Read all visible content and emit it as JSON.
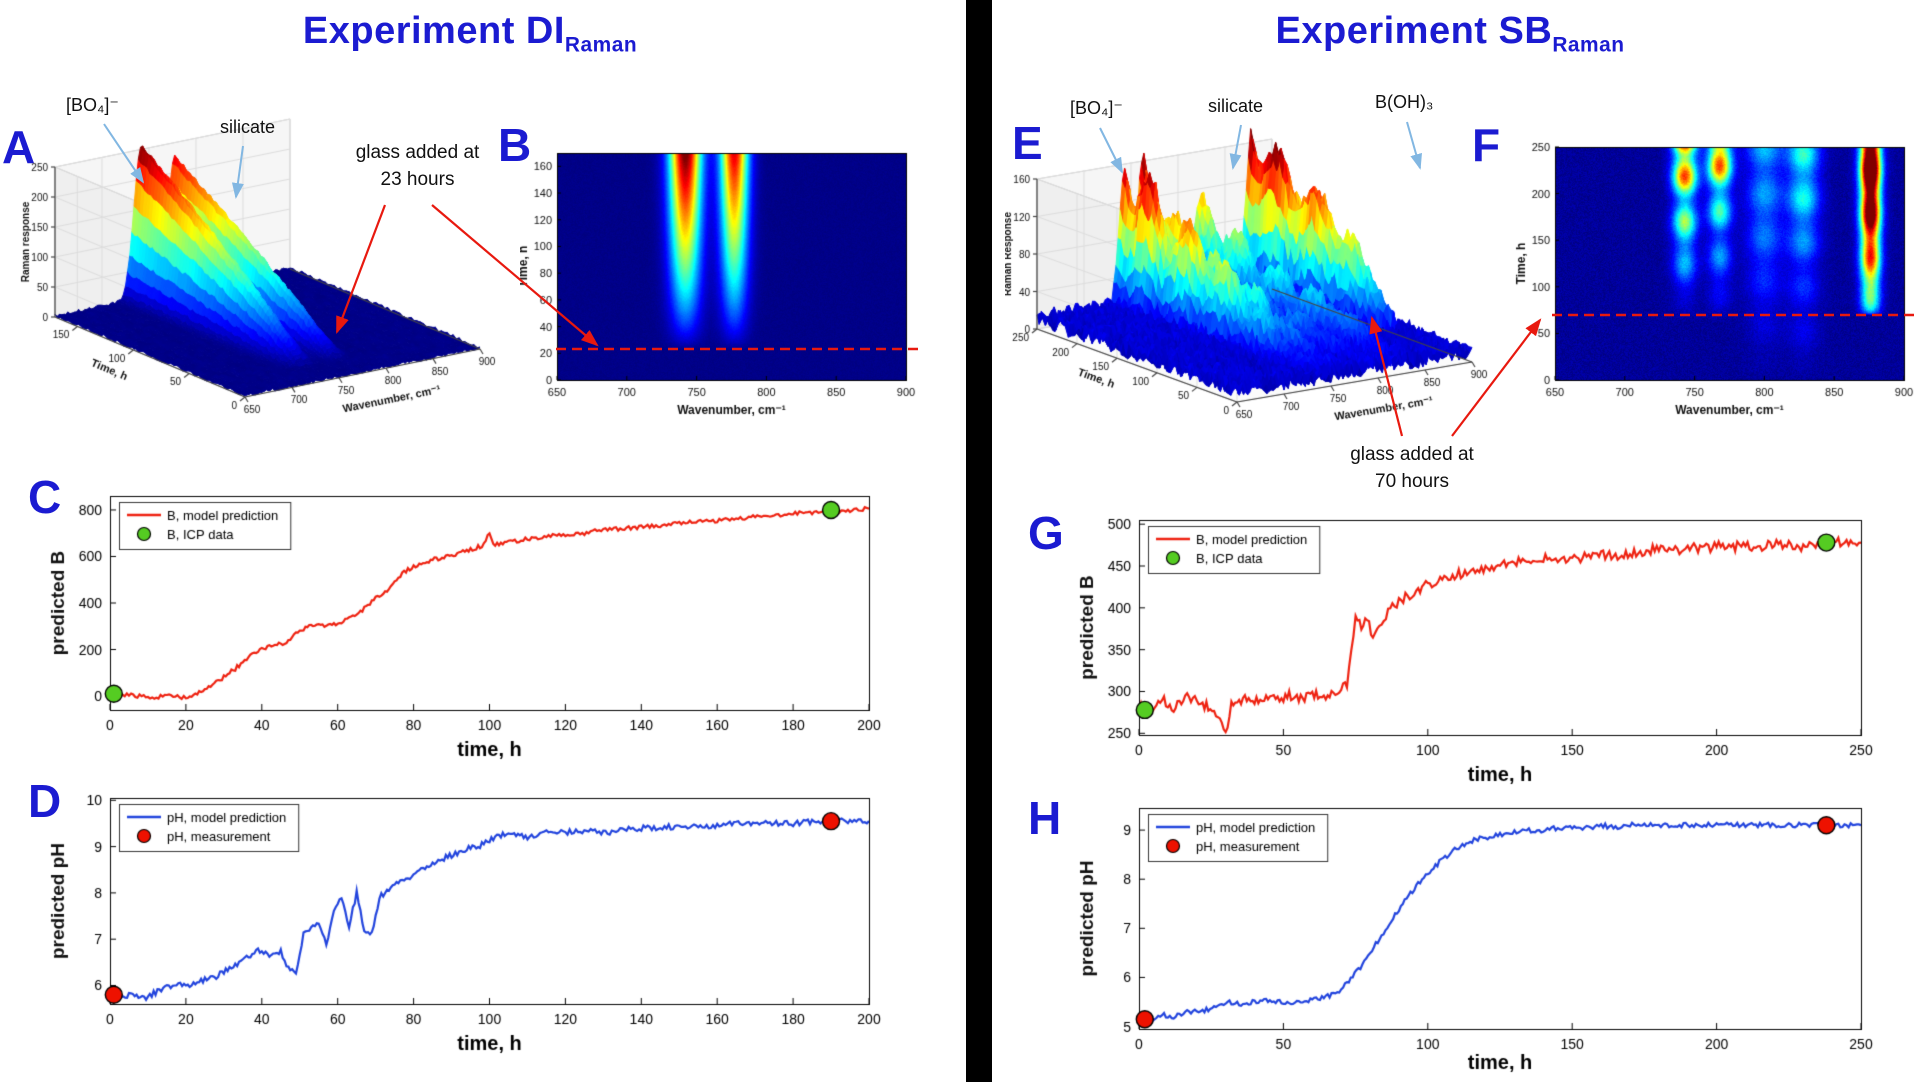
{
  "page": {
    "background": "#ffffff",
    "divider_color": "#000000"
  },
  "colors": {
    "title_blue": "#1b1bd1",
    "model_red": "#ee2211",
    "model_blue": "#2244dd",
    "icp_green": "#55cc22",
    "measurement_red": "#ee1100",
    "arrow_red": "#e8190f",
    "arrow_blue": "#82b7e2"
  },
  "left": {
    "title": {
      "main": "Experiment DI",
      "sub": "Raman"
    },
    "panel_labels": {
      "a": "A",
      "b": "B",
      "c": "C",
      "d": "D"
    },
    "annotations": {
      "bo4": "[BO₄]⁻",
      "silicate": "silicate",
      "glass": {
        "line1": "glass added at",
        "line2": "23 hours"
      }
    }
  },
  "right": {
    "title": {
      "main": "Experiment SB",
      "sub": "Raman"
    },
    "panel_labels": {
      "e": "E",
      "f": "F",
      "g": "G",
      "h": "H"
    },
    "annotations": {
      "bo4": "[BO₄]⁻",
      "silicate": "silicate",
      "boh3": "B(OH)₃",
      "glass": {
        "line1": "glass added at",
        "line2": "70 hours"
      }
    }
  },
  "chart_data": [
    {
      "id": "A",
      "type": "surface3d",
      "xlabel": "Wavenumber, cm⁻¹",
      "x_range": [
        650,
        900
      ],
      "x_ticks": [
        650,
        700,
        750,
        800,
        850,
        900
      ],
      "ylabel": "Time, h",
      "y_range": [
        0,
        170
      ],
      "y_ticks": [
        0,
        50,
        100,
        150
      ],
      "zlabel": "Raman response",
      "z_range": [
        0,
        250
      ],
      "z_ticks": [
        0,
        50,
        100,
        150,
        200,
        250
      ],
      "colormap": "jet",
      "baseline": 2,
      "roughness": 3,
      "peaks": [
        {
          "name": "[BO₄]⁻",
          "center": 742,
          "sigma": 8,
          "max": 255,
          "onset": 23,
          "pow": 0.85
        },
        {
          "name": "silicate",
          "center": 777,
          "sigma": 7,
          "max": 225,
          "onset": 23,
          "pow": 0.85
        }
      ]
    },
    {
      "id": "B",
      "type": "heatmap",
      "xlabel": "Wavenumber, cm⁻¹",
      "x_range": [
        650,
        900
      ],
      "x_ticks": [
        650,
        700,
        750,
        800,
        850,
        900
      ],
      "ylabel": "Time, h",
      "y_range": [
        0,
        170
      ],
      "y_ticks": [
        0,
        20,
        40,
        60,
        80,
        100,
        120,
        140,
        160
      ],
      "z_range": [
        0,
        250
      ],
      "colormap": "jet",
      "glass_added_h": 23,
      "baseline": 2,
      "roughness": 2,
      "peaks": [
        {
          "name": "[BO₄]⁻",
          "center": 742,
          "sigma": 8,
          "max": 255,
          "onset": 23,
          "pow": 0.85
        },
        {
          "name": "silicate",
          "center": 777,
          "sigma": 7,
          "max": 225,
          "onset": 23,
          "pow": 0.85
        }
      ]
    },
    {
      "id": "C",
      "type": "line",
      "xlabel": "time, h",
      "x_range": [
        0,
        200
      ],
      "x_ticks": [
        0,
        20,
        40,
        60,
        80,
        100,
        120,
        140,
        160,
        180,
        200
      ],
      "ylabel": "predicted B",
      "y_range": [
        -60,
        860
      ],
      "y_ticks": [
        0,
        200,
        400,
        600,
        800
      ],
      "legend_position": "top-left",
      "series": [
        {
          "name": "B, model prediction",
          "kind": "line",
          "color": "#ee2211",
          "noise": 9,
          "x": [
            0,
            5,
            10,
            15,
            20,
            23,
            26,
            30,
            34,
            38,
            42,
            46,
            50,
            54,
            57,
            60,
            63,
            66,
            70,
            74,
            78,
            82,
            86,
            90,
            94,
            98,
            100,
            101,
            105,
            110,
            115,
            120,
            125,
            130,
            135,
            140,
            145,
            150,
            155,
            160,
            165,
            170,
            175,
            180,
            185,
            190,
            195,
            200
          ],
          "y": [
            10,
            5,
            -5,
            0,
            -5,
            10,
            40,
            80,
            130,
            185,
            215,
            225,
            285,
            305,
            300,
            310,
            330,
            360,
            420,
            470,
            540,
            570,
            590,
            605,
            625,
            645,
            700,
            650,
            660,
            675,
            685,
            695,
            700,
            715,
            720,
            725,
            735,
            745,
            750,
            755,
            765,
            770,
            775,
            785,
            790,
            795,
            800,
            805
          ]
        },
        {
          "name": "B, ICP data",
          "kind": "scatter",
          "color": "#55cc22",
          "x": [
            1,
            190
          ],
          "y": [
            10,
            800
          ]
        }
      ]
    },
    {
      "id": "D",
      "type": "line",
      "xlabel": "time, h",
      "x_range": [
        0,
        200
      ],
      "x_ticks": [
        0,
        20,
        40,
        60,
        80,
        100,
        120,
        140,
        160,
        180,
        200
      ],
      "ylabel": "predicted pH",
      "y_range": [
        5.6,
        10.05
      ],
      "y_ticks": [
        6,
        7,
        8,
        9,
        10
      ],
      "legend_position": "top-left",
      "series": [
        {
          "name": "pH, model prediction",
          "kind": "line",
          "color": "#2244dd",
          "noise": 0.06,
          "x": [
            0,
            3,
            6,
            9,
            12,
            15,
            18,
            21,
            24,
            27,
            30,
            33,
            36,
            39,
            42,
            45,
            47,
            49,
            51,
            53,
            55,
            57,
            59,
            61,
            63,
            65,
            67,
            69,
            71,
            73,
            76,
            79,
            82,
            85,
            88,
            91,
            94,
            97,
            100,
            103,
            106,
            110,
            115,
            120,
            125,
            130,
            135,
            140,
            145,
            150,
            155,
            160,
            165,
            170,
            175,
            180,
            185,
            190,
            195,
            200
          ],
          "y": [
            5.8,
            5.75,
            5.8,
            5.7,
            5.85,
            5.95,
            6.05,
            6.0,
            6.1,
            6.15,
            6.3,
            6.45,
            6.6,
            6.75,
            6.65,
            6.75,
            6.35,
            6.3,
            7.1,
            7.25,
            7.3,
            6.9,
            7.6,
            7.9,
            7.3,
            8.0,
            7.2,
            7.15,
            7.9,
            8.05,
            8.2,
            8.35,
            8.5,
            8.6,
            8.75,
            8.85,
            8.95,
            9.0,
            9.15,
            9.25,
            9.3,
            9.2,
            9.3,
            9.3,
            9.35,
            9.3,
            9.35,
            9.4,
            9.4,
            9.45,
            9.45,
            9.45,
            9.5,
            9.5,
            9.5,
            9.5,
            9.55,
            9.55,
            9.55,
            9.55
          ]
        },
        {
          "name": "pH, measurement",
          "kind": "scatter",
          "color": "#ee1100",
          "x": [
            1,
            190
          ],
          "y": [
            5.8,
            9.55
          ]
        }
      ]
    },
    {
      "id": "E",
      "type": "surface3d",
      "xlabel": "Wavenumber, cm⁻¹",
      "x_range": [
        650,
        900
      ],
      "x_ticks": [
        650,
        700,
        750,
        800,
        850,
        900
      ],
      "ylabel": "Time, h",
      "y_range": [
        0,
        250
      ],
      "y_ticks": [
        0,
        50,
        100,
        150,
        200,
        250
      ],
      "zlabel": "Raman Response",
      "z_range": [
        0,
        160
      ],
      "z_ticks": [
        0,
        40,
        80,
        120,
        160
      ],
      "colormap": "jet",
      "baseline": 12,
      "roughness": 9,
      "peaks": [
        {
          "name": "[BO₄]⁻",
          "center": 743,
          "sigma": 6,
          "max": 160,
          "onset": 0,
          "pow": 1.3,
          "mod": 0.35
        },
        {
          "name": "silicate",
          "center": 763,
          "sigma": 6,
          "max": 120,
          "onset": 0,
          "pow": 1.2,
          "mod": 0.3
        },
        {
          "center": 793,
          "sigma": 10,
          "max": 60,
          "onset": 0,
          "pow": 1.0,
          "mod": 0.3
        },
        {
          "center": 826,
          "sigma": 9,
          "max": 75,
          "onset": 0,
          "pow": 1.0,
          "mod": 0.4
        },
        {
          "name": "B(OH)₃",
          "center": 878,
          "sigma": 6,
          "max": 170,
          "onset": 70,
          "pow": 0.7,
          "mod": 0.25
        }
      ]
    },
    {
      "id": "F",
      "type": "heatmap",
      "xlabel": "Wavenumber, cm⁻¹",
      "x_range": [
        650,
        900
      ],
      "x_ticks": [
        650,
        700,
        750,
        800,
        850,
        900
      ],
      "ylabel": "Time, h",
      "y_range": [
        0,
        250
      ],
      "y_ticks": [
        0,
        50,
        100,
        150,
        200,
        250
      ],
      "z_range": [
        0,
        160
      ],
      "colormap": "jet",
      "glass_added_h": 70,
      "baseline": 4,
      "roughness": 4,
      "peaks": [
        {
          "name": "[BO₄]⁻",
          "center": 743,
          "sigma": 6,
          "max": 150,
          "onset": 60,
          "pow": 1.4,
          "mod": 0.5
        },
        {
          "name": "silicate",
          "center": 768,
          "sigma": 6,
          "max": 110,
          "onset": 60,
          "pow": 1.2,
          "mod": 0.5
        },
        {
          "center": 800,
          "sigma": 9,
          "max": 45,
          "onset": 0,
          "pow": 1.0,
          "mod": 0.3
        },
        {
          "center": 828,
          "sigma": 8,
          "max": 55,
          "onset": 0,
          "pow": 1.0,
          "mod": 0.4
        },
        {
          "name": "B(OH)₃",
          "center": 876,
          "sigma": 5,
          "max": 200,
          "onset": 70,
          "pow": 0.4,
          "mod": 0.2
        }
      ]
    },
    {
      "id": "G",
      "type": "line",
      "xlabel": "time, h",
      "x_range": [
        0,
        250
      ],
      "x_ticks": [
        0,
        50,
        100,
        150,
        200,
        250
      ],
      "ylabel": "predicted B",
      "y_range": [
        248,
        505
      ],
      "y_ticks": [
        250,
        300,
        350,
        400,
        450,
        500
      ],
      "legend_position": "top-left",
      "series": [
        {
          "name": "B, model prediction",
          "kind": "line",
          "color": "#ee2211",
          "noise": 6,
          "x": [
            0,
            4,
            8,
            12,
            16,
            20,
            24,
            28,
            30,
            32,
            36,
            40,
            44,
            48,
            52,
            56,
            60,
            64,
            68,
            72,
            75,
            77,
            79,
            81,
            84,
            87,
            90,
            93,
            96,
            100,
            105,
            110,
            115,
            120,
            125,
            130,
            135,
            140,
            145,
            150,
            155,
            160,
            165,
            170,
            175,
            180,
            185,
            190,
            195,
            200,
            205,
            210,
            215,
            220,
            225,
            230,
            235,
            240,
            245,
            250
          ],
          "y": [
            285,
            275,
            292,
            280,
            295,
            288,
            282,
            262,
            250,
            285,
            292,
            288,
            295,
            290,
            295,
            292,
            296,
            294,
            296,
            310,
            390,
            378,
            385,
            368,
            380,
            398,
            408,
            415,
            420,
            428,
            432,
            440,
            444,
            448,
            452,
            455,
            455,
            458,
            460,
            458,
            462,
            464,
            462,
            466,
            468,
            470,
            468,
            472,
            470,
            474,
            472,
            475,
            472,
            478,
            474,
            472,
            478,
            480,
            476,
            478
          ]
        },
        {
          "name": "B, ICP data",
          "kind": "scatter",
          "color": "#55cc22",
          "x": [
            2,
            238
          ],
          "y": [
            278,
            478
          ]
        }
      ]
    },
    {
      "id": "H",
      "type": "line",
      "xlabel": "time, h",
      "x_range": [
        0,
        250
      ],
      "x_ticks": [
        0,
        50,
        100,
        150,
        200,
        250
      ],
      "ylabel": "predicted pH",
      "y_range": [
        4.95,
        9.45
      ],
      "y_ticks": [
        5,
        6,
        7,
        8,
        9
      ],
      "legend_position": "top-left",
      "series": [
        {
          "name": "pH, model prediction",
          "kind": "line",
          "color": "#2244dd",
          "noise": 0.05,
          "x": [
            0,
            4,
            8,
            12,
            16,
            20,
            24,
            28,
            32,
            36,
            40,
            44,
            48,
            52,
            56,
            60,
            64,
            68,
            72,
            76,
            80,
            84,
            88,
            92,
            96,
            100,
            104,
            108,
            112,
            116,
            120,
            125,
            130,
            135,
            140,
            145,
            150,
            155,
            160,
            165,
            170,
            175,
            180,
            185,
            190,
            195,
            200,
            205,
            210,
            215,
            220,
            225,
            230,
            235,
            240,
            245,
            250
          ],
          "y": [
            5.2,
            5.1,
            5.25,
            5.2,
            5.3,
            5.3,
            5.35,
            5.4,
            5.5,
            5.45,
            5.5,
            5.55,
            5.5,
            5.45,
            5.5,
            5.55,
            5.6,
            5.65,
            5.9,
            6.15,
            6.5,
            6.85,
            7.2,
            7.55,
            7.85,
            8.1,
            8.35,
            8.55,
            8.7,
            8.8,
            8.85,
            8.9,
            8.95,
            9.0,
            9.0,
            9.05,
            9.05,
            9.05,
            9.1,
            9.05,
            9.1,
            9.1,
            9.1,
            9.1,
            9.1,
            9.1,
            9.1,
            9.1,
            9.1,
            9.1,
            9.1,
            9.1,
            9.1,
            9.1,
            9.1,
            9.1,
            9.1
          ]
        },
        {
          "name": "pH, measurement",
          "kind": "scatter",
          "color": "#ee1100",
          "x": [
            2,
            238
          ],
          "y": [
            5.15,
            9.1
          ]
        }
      ]
    }
  ]
}
